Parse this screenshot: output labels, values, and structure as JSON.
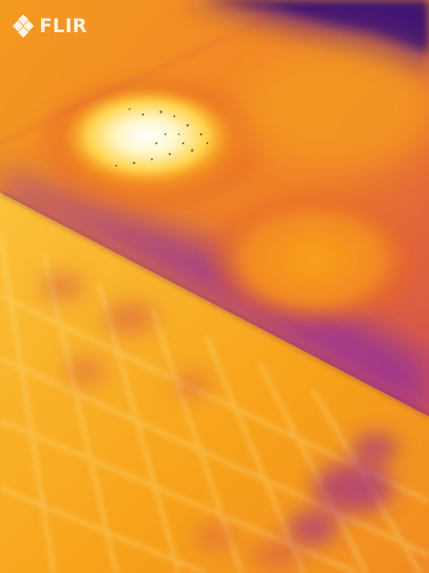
{
  "brand": {
    "name": "FLIR",
    "icon": "flir-logo-icon"
  },
  "palette": {
    "cold": "#2a0a5c",
    "cool": "#8a2aa8",
    "mid": "#e0502a",
    "warm": "#f7a21a",
    "hot": "#ffd34a",
    "hottest": "#ffffff"
  }
}
